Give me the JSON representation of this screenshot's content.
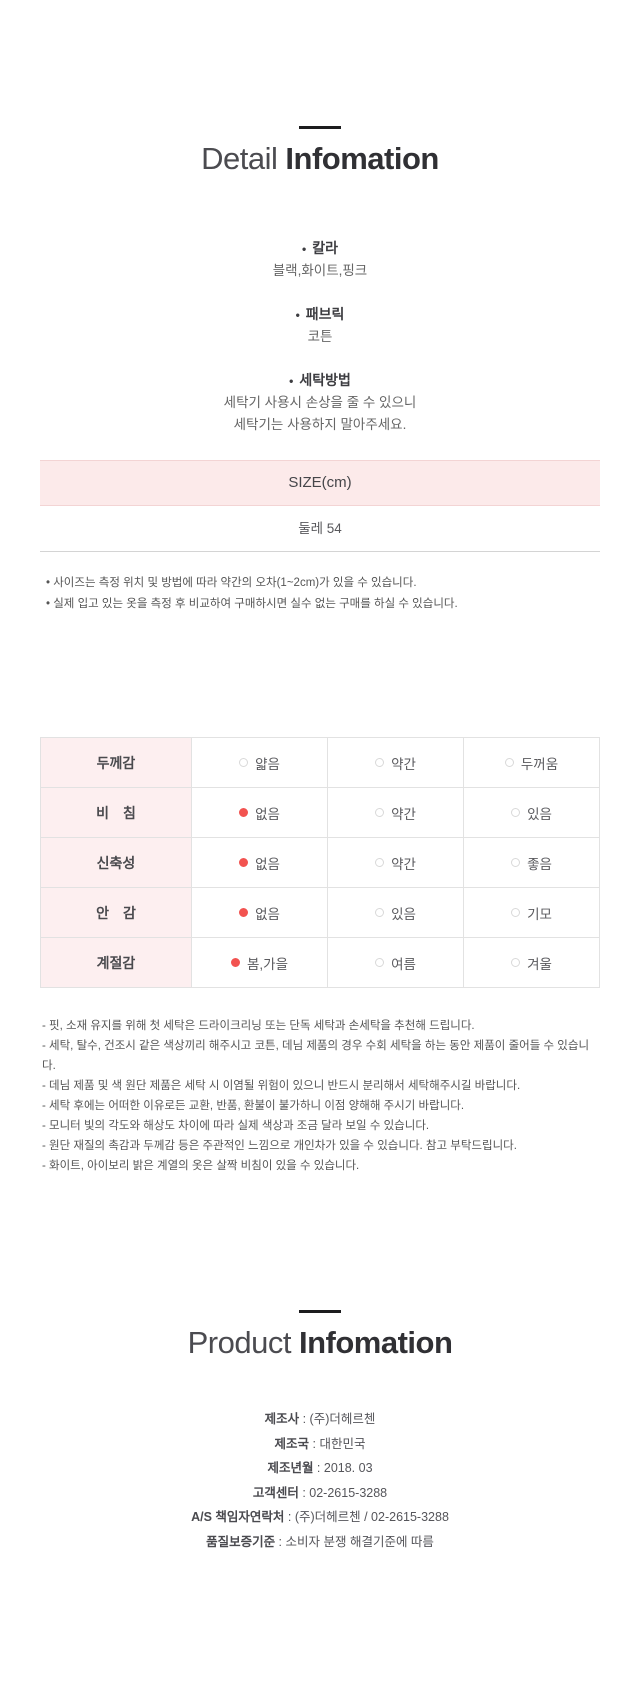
{
  "detail": {
    "title_light": "Detail",
    "title_bold": "Infomation",
    "bullet": "•",
    "attributes": [
      {
        "label": "칼라",
        "value": "블랙,화이트,핑크"
      },
      {
        "label": "패브릭",
        "value": "코튼"
      },
      {
        "label": "세탁방법",
        "value": "세탁기 사용시 손상을 줄 수 있으니\n세탁기는 사용하지 말아주세요."
      }
    ]
  },
  "size": {
    "header": "SIZE(cm)",
    "row": "둘레 54",
    "notes": [
      "•  사이즈는 측정 위치 및 방법에 따라 약간의 오차(1~2cm)가 있을 수 있습니다.",
      "•  실제 입고 있는 옷을 측정 후 비교하여 구매하시면 실수 없는 구매를 하실 수 있습니다."
    ]
  },
  "spec": {
    "rows": [
      {
        "label": "두께감",
        "options": [
          {
            "text": "얇음",
            "selected": false
          },
          {
            "text": "약간",
            "selected": false
          },
          {
            "text": "두꺼움",
            "selected": false
          }
        ]
      },
      {
        "label": "비 침",
        "options": [
          {
            "text": "없음",
            "selected": true
          },
          {
            "text": "약간",
            "selected": false
          },
          {
            "text": "있음",
            "selected": false
          }
        ]
      },
      {
        "label": "신축성",
        "options": [
          {
            "text": "없음",
            "selected": true
          },
          {
            "text": "약간",
            "selected": false
          },
          {
            "text": "좋음",
            "selected": false
          }
        ]
      },
      {
        "label": "안 감",
        "options": [
          {
            "text": "없음",
            "selected": true
          },
          {
            "text": "있음",
            "selected": false
          },
          {
            "text": "기모",
            "selected": false
          }
        ]
      },
      {
        "label": "계절감",
        "options": [
          {
            "text": "봄,가을",
            "selected": true
          },
          {
            "text": "여름",
            "selected": false
          },
          {
            "text": "겨울",
            "selected": false
          }
        ]
      }
    ],
    "notes": [
      "- 핏, 소재 유지를 위해 첫 세탁은 드라이크리닝 또는 단독 세탁과 손세탁을 추천해 드립니다.",
      "- 세탁, 탈수, 건조시 같은 색상끼리 해주시고 코튼, 데님 제품의 경우 수회 세탁을 하는 동안 제품이 줄어들 수 있습니다.",
      "- 데님 제품 및 색 원단 제품은 세탁 시 이염될 위험이 있으니 반드시 분리해서 세탁해주시길 바랍니다.",
      "- 세탁 후에는 어떠한 이유로든 교환, 반품, 환불이 불가하니 이점 양해해 주시기 바랍니다.",
      "- 모니터 빛의 각도와 해상도 차이에 따라 실제 색상과 조금 달라 보일 수 있습니다.",
      "- 원단 재질의 촉감과 두께감 등은 주관적인 느낌으로 개인차가 있을 수 있습니다. 참고 부탁드립니다.",
      "- 화이트, 아이보리 밝은 계열의 옷은 살짝 비침이 있을 수 있습니다."
    ]
  },
  "product": {
    "title_light": "Product",
    "title_bold": "Infomation",
    "info": [
      {
        "label": "제조사",
        "sep": " : ",
        "value": "(주)더헤르첸"
      },
      {
        "label": "제조국",
        "sep": " : ",
        "value": "대한민국"
      },
      {
        "label": "제조년월",
        "sep": " : ",
        "value": "2018. 03"
      },
      {
        "label": "고객센터",
        "sep": " : ",
        "value": "02-2615-3288"
      },
      {
        "label": "A/S 책임자연락처",
        "sep": " : ",
        "value": "(주)더헤르첸 / 02-2615-3288"
      },
      {
        "label": "품질보증기준",
        "sep": " : ",
        "value": "소비자 분쟁 해결기준에 따름"
      }
    ]
  },
  "colors": {
    "accent_red": "#f25350",
    "size_header_bg": "#fceaea",
    "spec_label_bg": "#fdeff0"
  }
}
